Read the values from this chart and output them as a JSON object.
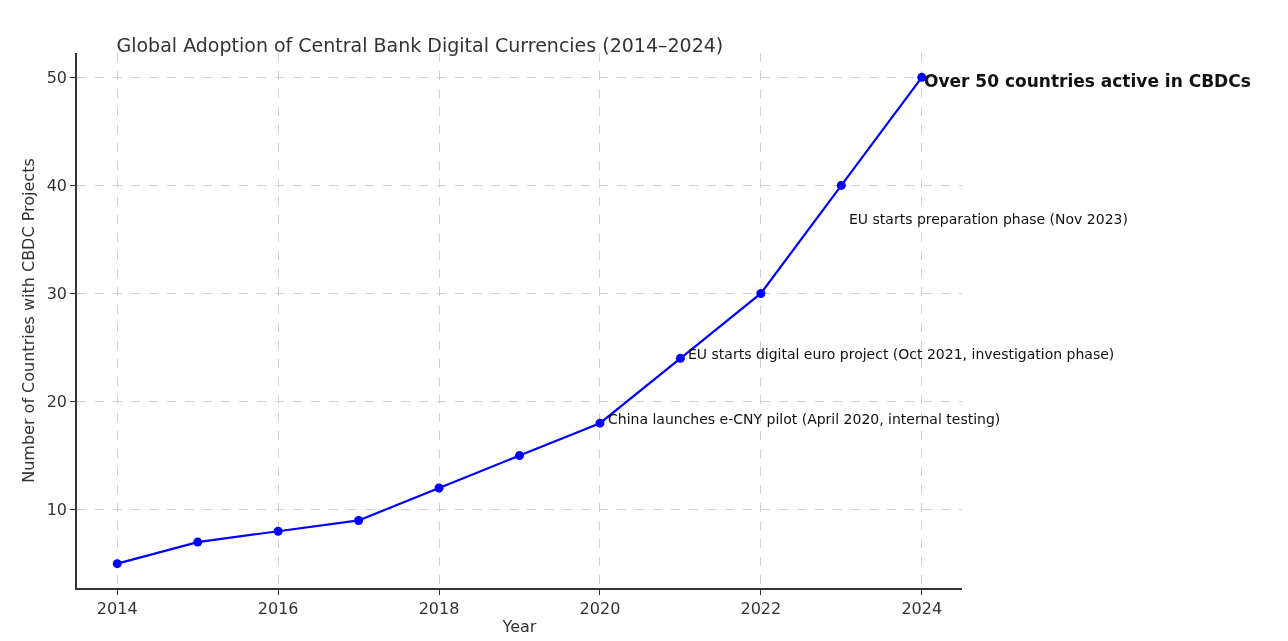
{
  "chart_data": {
    "type": "line",
    "title": "Global Adoption of Central Bank Digital Currencies (2014–2024)",
    "xlabel": "Year",
    "ylabel": "Number of Countries with CBDC Projects",
    "x": [
      2014,
      2015,
      2016,
      2017,
      2018,
      2019,
      2020,
      2021,
      2022,
      2023,
      2024
    ],
    "series": [
      {
        "color": "#0000ff",
        "values": [
          5,
          7,
          8,
          9,
          12,
          15,
          18,
          24,
          30,
          40,
          50
        ]
      }
    ],
    "xlim": [
      2013.5,
      2024.5
    ],
    "xticks": [
      2014,
      2016,
      2018,
      2020,
      2022,
      2024
    ],
    "ylim": [
      2.75,
      52.25
    ],
    "yticks": [
      10,
      20,
      30,
      40,
      50
    ],
    "grid": true,
    "marker": "circle",
    "line_style": "solid",
    "annotations": [
      {
        "text": "China launches e-CNY pilot (April 2020, internal testing)",
        "x": 2020,
        "y": 18
      },
      {
        "text": "EU starts digital euro project (Oct 2021, investigation phase)",
        "x": 2021,
        "y": 24
      },
      {
        "text": "EU starts preparation phase (Nov 2023)",
        "x": 2023,
        "y": 40
      },
      {
        "text": "Over 50 countries active in CBDCs",
        "x": 2024,
        "y": 50
      }
    ]
  }
}
